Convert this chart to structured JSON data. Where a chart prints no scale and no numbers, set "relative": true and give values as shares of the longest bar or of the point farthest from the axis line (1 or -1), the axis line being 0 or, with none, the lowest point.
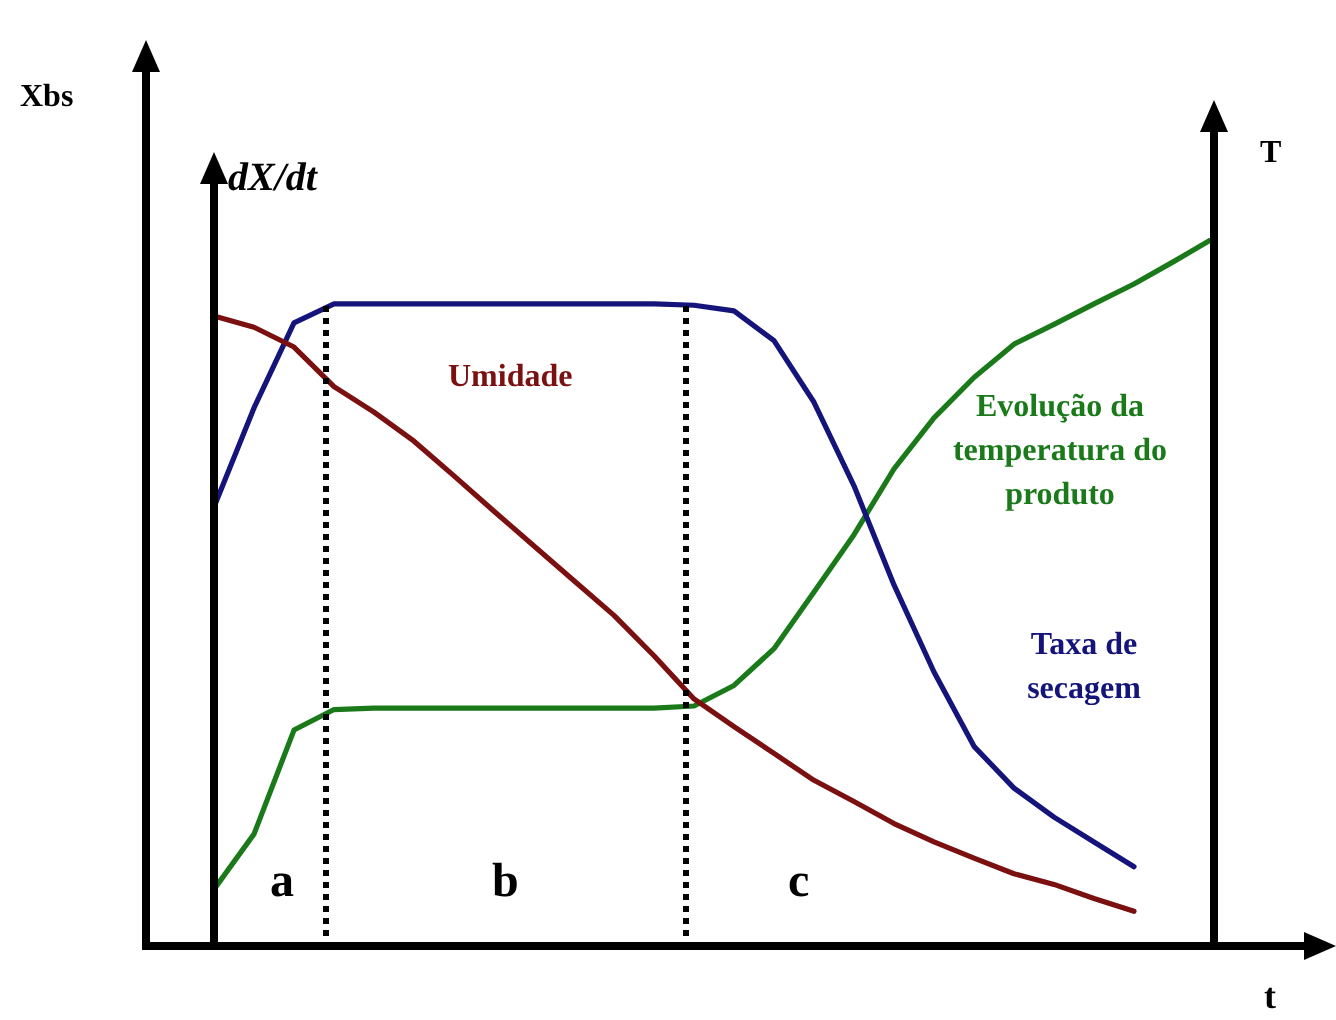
{
  "chart_data": {
    "type": "line",
    "relative": true,
    "xlabel": "t",
    "y3label": "dX/dt",
    "y2label": "T",
    "legend": false,
    "marker": "none",
    "line_style": "solid",
    "categories": [
      null,
      null,
      null,
      null,
      null,
      null,
      null,
      null,
      null,
      null,
      null,
      null,
      null,
      null,
      null,
      null,
      null,
      null,
      null,
      null,
      null,
      null,
      null,
      null,
      null,
      null
    ],
    "series": [
      {
        "name": "Umidade",
        "color": "#7b1010",
        "values": [
          0.89,
          0.874,
          0.846,
          0.79,
          0.754,
          0.713,
          0.664,
          0.614,
          0.565,
          0.516,
          0.467,
          0.41,
          0.349,
          0.31,
          0.272,
          0.234,
          0.204,
          0.173,
          0.147,
          0.124,
          0.102,
          0.087,
          0.067,
          0.049,
          null,
          null
        ]
      },
      {
        "name": "Taxa de secagem",
        "color": "#14147a",
        "values": [
          0.62,
          0.76,
          0.88,
          0.907,
          0.907,
          0.907,
          0.907,
          0.907,
          0.907,
          0.907,
          0.907,
          0.907,
          0.905,
          0.897,
          0.855,
          0.768,
          0.65,
          0.51,
          0.387,
          0.282,
          0.223,
          0.182,
          0.147,
          0.112,
          null,
          null
        ]
      },
      {
        "name": "Evolução da temperatura do produto",
        "color": "#1a7a1a",
        "values": [
          0.08,
          0.158,
          0.305,
          0.334,
          0.336,
          0.336,
          0.336,
          0.336,
          0.336,
          0.336,
          0.336,
          0.336,
          0.339,
          0.368,
          0.42,
          0.5,
          0.581,
          0.674,
          0.746,
          0.803,
          0.85,
          0.878,
          0.907,
          0.935,
          0.967,
          1
        ]
      }
    ],
    "annotations": [
      "a",
      "b",
      "c",
      "Xbs"
    ]
  }
}
